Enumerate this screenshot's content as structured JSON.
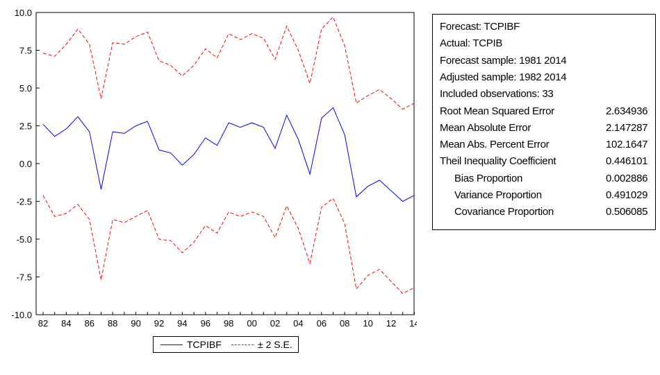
{
  "chart_data": {
    "type": "line",
    "x": [
      "1982",
      "1983",
      "1984",
      "1985",
      "1986",
      "1987",
      "1988",
      "1989",
      "1990",
      "1991",
      "1992",
      "1993",
      "1994",
      "1995",
      "1996",
      "1997",
      "1998",
      "1999",
      "2000",
      "2001",
      "2002",
      "2003",
      "2004",
      "2005",
      "2006",
      "2007",
      "2008",
      "2009",
      "2010",
      "2011",
      "2012",
      "2013",
      "2014"
    ],
    "x_tick_labels": [
      "82",
      "84",
      "86",
      "88",
      "90",
      "92",
      "94",
      "96",
      "98",
      "00",
      "02",
      "04",
      "06",
      "08",
      "10",
      "12",
      "14"
    ],
    "y_tick_labels": [
      "10.0",
      "7.5",
      "5.0",
      "2.5",
      "0.0",
      "-2.5",
      "-5.0",
      "-7.5",
      "-10.0"
    ],
    "ylim": [
      -10,
      10
    ],
    "grid": false,
    "series": [
      {
        "name": "TCPIBF",
        "color": "#0000ff",
        "dash": "solid",
        "values": [
          2.6,
          1.8,
          2.3,
          3.1,
          2.1,
          -1.7,
          2.1,
          2.0,
          2.5,
          2.8,
          0.9,
          0.7,
          -0.1,
          0.6,
          1.7,
          1.2,
          2.7,
          2.4,
          2.7,
          2.4,
          1.0,
          3.2,
          1.6,
          -0.7,
          3.0,
          3.7,
          1.9,
          -2.2,
          -1.5,
          -1.1,
          -1.8,
          -2.5,
          -2.1
        ]
      },
      {
        "name": "± 2 S.E.",
        "color": "#ff0000",
        "dash": "dashed",
        "values": [
          7.3,
          7.1,
          7.9,
          8.9,
          7.9,
          4.3,
          8.0,
          7.9,
          8.4,
          8.7,
          6.8,
          6.5,
          5.8,
          6.5,
          7.6,
          7.0,
          8.6,
          8.2,
          8.6,
          8.3,
          6.9,
          9.1,
          7.5,
          5.3,
          8.9,
          9.7,
          7.8,
          4.0,
          4.5,
          4.9,
          4.3,
          3.6,
          4.0
        ]
      },
      {
        "name": "",
        "color": "#ff0000",
        "dash": "dashed",
        "values": [
          -2.1,
          -3.5,
          -3.3,
          -2.7,
          -3.7,
          -7.7,
          -3.7,
          -3.9,
          -3.5,
          -3.1,
          -5.0,
          -5.1,
          -5.9,
          -5.2,
          -4.1,
          -4.6,
          -3.2,
          -3.5,
          -3.2,
          -3.5,
          -4.9,
          -2.8,
          -4.3,
          -6.6,
          -2.9,
          -2.3,
          -4.0,
          -8.3,
          -7.4,
          -7.0,
          -7.8,
          -8.6,
          -8.2
        ]
      }
    ],
    "legend": {
      "position": "bottom",
      "entries": [
        {
          "label": "TCPIBF",
          "color": "#0000ff",
          "dash": "solid"
        },
        {
          "label": "± 2 S.E.",
          "color": "#ff0000",
          "dash": "dashed"
        }
      ]
    }
  },
  "stats": {
    "rows": [
      {
        "label": "Forecast: TCPIBF",
        "value": "",
        "indent": false
      },
      {
        "label": "Actual: TCPIB",
        "value": "",
        "indent": false
      },
      {
        "label": "Forecast sample: 1981 2014",
        "value": "",
        "indent": false
      },
      {
        "label": "Adjusted sample: 1982 2014",
        "value": "",
        "indent": false
      },
      {
        "label": "Included observations: 33",
        "value": "",
        "indent": false
      },
      {
        "label": "Root Mean Squared Error",
        "value": "2.634936",
        "indent": false
      },
      {
        "label": "Mean Absolute Error",
        "value": "2.147287",
        "indent": false
      },
      {
        "label": "Mean Abs. Percent Error",
        "value": "102.1647",
        "indent": false
      },
      {
        "label": "Theil Inequality Coefficient",
        "value": "0.446101",
        "indent": false
      },
      {
        "label": "Bias Proportion",
        "value": "0.002886",
        "indent": true
      },
      {
        "label": "Variance Proportion",
        "value": "0.491029",
        "indent": true
      },
      {
        "label": "Covariance Proportion",
        "value": "0.506085",
        "indent": true
      }
    ]
  }
}
